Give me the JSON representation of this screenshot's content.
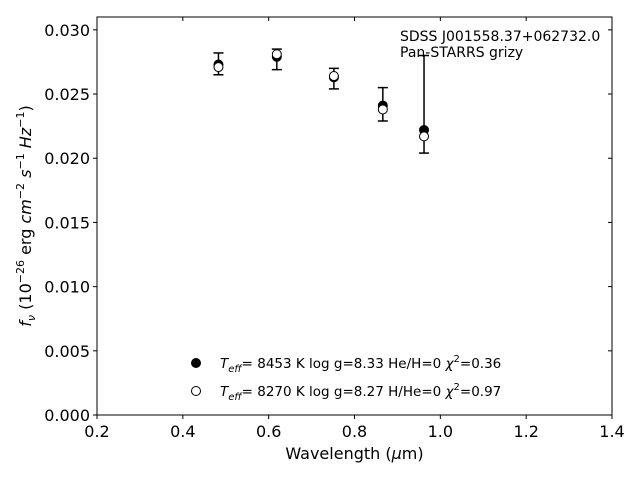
{
  "chart_data": {
    "type": "scatter",
    "title": "",
    "xlabel": "Wavelength (μm)",
    "ylabel": "f_ν (10^-26 erg cm^-2 s^-1 Hz^-1)",
    "xlim": [
      0.2,
      1.4
    ],
    "ylim": [
      0.0,
      0.031
    ],
    "x_ticks": [
      "0.2",
      "0.4",
      "0.6",
      "0.8",
      "1.0",
      "1.2",
      "1.4"
    ],
    "y_ticks": [
      "0.000",
      "0.005",
      "0.010",
      "0.015",
      "0.020",
      "0.025",
      "0.030"
    ],
    "grid": false,
    "annotation": {
      "line1": "SDSS J001558.37+062732.0",
      "line2": "Pan-STARRS grizy"
    },
    "legend_placement": "bottom-center",
    "observed": {
      "x": [
        0.483,
        0.619,
        0.752,
        0.866,
        0.962
      ],
      "y": [
        0.0272,
        0.0277,
        0.0262,
        0.0242,
        0.0242
      ],
      "yerr_low": [
        0.0007,
        0.0008,
        0.0008,
        0.0013,
        0.0038
      ],
      "yerr_high": [
        0.001,
        0.0008,
        0.0008,
        0.0013,
        0.0038
      ]
    },
    "series": [
      {
        "name": "T_eff= 8453 K log g=8.33 He/H=0 χ²=0.36",
        "marker": "filled",
        "teff": "8453 K",
        "logg": "8.33",
        "comp": "He/H=0",
        "chi2": "0.36",
        "x": [
          0.483,
          0.619,
          0.752,
          0.866,
          0.962
        ],
        "y": [
          0.0273,
          0.0279,
          0.0263,
          0.0241,
          0.0222
        ]
      },
      {
        "name": "T_eff= 8270 K log g=8.27 H/He=0 χ²=0.97",
        "marker": "open",
        "teff": "8270 K",
        "logg": "8.27",
        "comp": "H/He=0",
        "chi2": "0.97",
        "x": [
          0.483,
          0.619,
          0.752,
          0.866,
          0.962
        ],
        "y": [
          0.0271,
          0.0281,
          0.0264,
          0.0238,
          0.0217
        ]
      }
    ],
    "colors": {
      "marker": "#000000",
      "axis": "#000000",
      "background": "#ffffff"
    }
  }
}
